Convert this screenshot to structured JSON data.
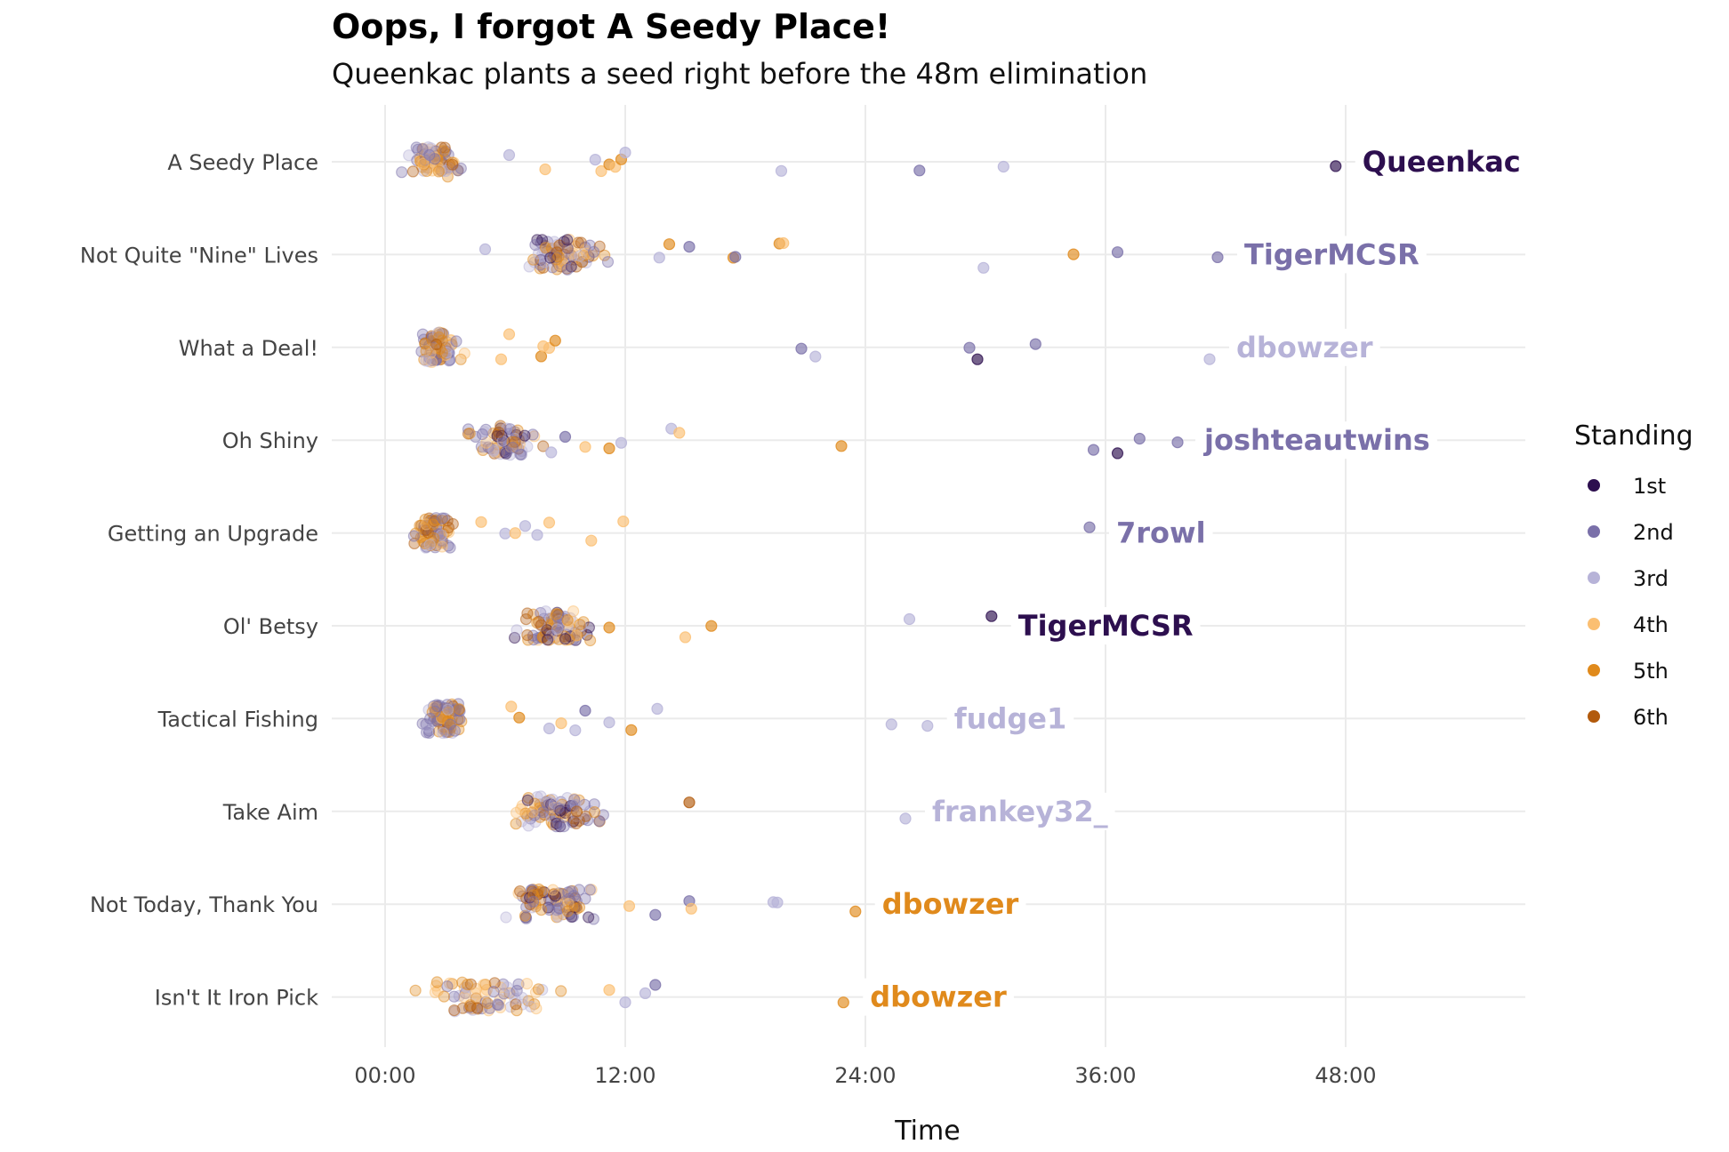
{
  "chart_data": {
    "type": "scatter",
    "title": "Oops, I forgot A Seedy Place!",
    "subtitle": "Queenkac plants a seed right before the 48m elimination",
    "xlabel": "Time",
    "ylabel": "",
    "x_unit": "minutes",
    "xlim": [
      -2.5,
      57
    ],
    "x_ticks": [
      0,
      12,
      24,
      36,
      48
    ],
    "x_tick_labels": [
      "00:00",
      "12:00",
      "24:00",
      "36:00",
      "48:00"
    ],
    "grid": true,
    "categories": [
      "A Seedy Place",
      "Not Quite \"Nine\" Lives",
      "What a Deal!",
      "Oh Shiny",
      "Getting an Upgrade",
      "Ol' Betsy",
      "Tactical Fishing",
      "Take Aim",
      "Not Today, Thank You",
      "Isn't It Iron Pick"
    ],
    "legend": {
      "title": "Standing",
      "position": "right",
      "entries": [
        {
          "label": "1st",
          "color": "#2d0f4f"
        },
        {
          "label": "2nd",
          "color": "#7a70a9"
        },
        {
          "label": "3rd",
          "color": "#b7b3d8"
        },
        {
          "label": "4th",
          "color": "#fbbf72"
        },
        {
          "label": "5th",
          "color": "#e08a1c"
        },
        {
          "label": "6th",
          "color": "#b25a0c"
        }
      ]
    },
    "annotations": [
      {
        "category": "A Seedy Place",
        "label": "Queenkac",
        "standing": "1st",
        "x": 47.5
      },
      {
        "category": "Not Quite \"Nine\" Lives",
        "label": "TigerMCSR",
        "standing": "2nd",
        "x": 41.6
      },
      {
        "category": "What a Deal!",
        "label": "dbowzer",
        "standing": "3rd",
        "x": 41.2
      },
      {
        "category": "Oh Shiny",
        "label": "joshteautwins",
        "standing": "2nd",
        "x": 39.6
      },
      {
        "category": "Getting an Upgrade",
        "label": "7rowl",
        "standing": "2nd",
        "x": 35.2
      },
      {
        "category": "Ol' Betsy",
        "label": "TigerMCSR",
        "standing": "1st",
        "x": 30.3
      },
      {
        "category": "Tactical Fishing",
        "label": "fudge1",
        "standing": "3rd",
        "x": 27.1
      },
      {
        "category": "Take Aim",
        "label": "frankey32_",
        "standing": "3rd",
        "x": 26.0
      },
      {
        "category": "Not Today, Thank You",
        "label": "dbowzer",
        "standing": "5th",
        "x": 23.5
      },
      {
        "category": "Isn't It Iron Pick",
        "label": "dbowzer",
        "standing": "5th",
        "x": 22.9
      }
    ],
    "outliers": [
      {
        "category": "A Seedy Place",
        "points": [
          [
            6.2,
            "3rd"
          ],
          [
            8.0,
            "4th"
          ],
          [
            10.5,
            "3rd"
          ],
          [
            10.8,
            "4th"
          ],
          [
            11.2,
            "5th"
          ],
          [
            11.5,
            "4th"
          ],
          [
            11.8,
            "5th"
          ],
          [
            12.0,
            "3rd"
          ],
          [
            19.8,
            "3rd"
          ],
          [
            26.7,
            "2nd"
          ],
          [
            30.9,
            "3rd"
          ],
          [
            47.5,
            "1st"
          ]
        ]
      },
      {
        "category": "Not Quite \"Nine\" Lives",
        "points": [
          [
            5.0,
            "3rd"
          ],
          [
            13.7,
            "3rd"
          ],
          [
            14.2,
            "5th"
          ],
          [
            15.2,
            "2nd"
          ],
          [
            17.4,
            "5th"
          ],
          [
            17.5,
            "2nd"
          ],
          [
            19.7,
            "5th"
          ],
          [
            19.9,
            "4th"
          ],
          [
            29.9,
            "3rd"
          ],
          [
            34.4,
            "5th"
          ],
          [
            36.6,
            "2nd"
          ],
          [
            41.6,
            "2nd"
          ]
        ]
      },
      {
        "category": "What a Deal!",
        "points": [
          [
            5.8,
            "4th"
          ],
          [
            6.2,
            "4th"
          ],
          [
            7.8,
            "5th"
          ],
          [
            7.9,
            "4th"
          ],
          [
            8.2,
            "4th"
          ],
          [
            8.5,
            "5th"
          ],
          [
            20.8,
            "2nd"
          ],
          [
            21.5,
            "3rd"
          ],
          [
            29.2,
            "2nd"
          ],
          [
            29.6,
            "1st"
          ],
          [
            32.5,
            "2nd"
          ],
          [
            41.2,
            "3rd"
          ]
        ]
      },
      {
        "category": "Oh Shiny",
        "points": [
          [
            8.3,
            "3rd"
          ],
          [
            9.0,
            "2nd"
          ],
          [
            10.0,
            "4th"
          ],
          [
            11.2,
            "5th"
          ],
          [
            11.8,
            "3rd"
          ],
          [
            14.3,
            "3rd"
          ],
          [
            14.7,
            "4th"
          ],
          [
            22.8,
            "5th"
          ],
          [
            35.4,
            "2nd"
          ],
          [
            36.6,
            "1st"
          ],
          [
            37.7,
            "2nd"
          ],
          [
            39.6,
            "2nd"
          ]
        ]
      },
      {
        "category": "Getting an Upgrade",
        "points": [
          [
            4.8,
            "4th"
          ],
          [
            6.0,
            "3rd"
          ],
          [
            6.5,
            "4th"
          ],
          [
            7.0,
            "3rd"
          ],
          [
            7.6,
            "3rd"
          ],
          [
            8.2,
            "4th"
          ],
          [
            10.3,
            "4th"
          ],
          [
            11.9,
            "4th"
          ],
          [
            35.2,
            "2nd"
          ]
        ]
      },
      {
        "category": "Ol' Betsy",
        "points": [
          [
            11.2,
            "5th"
          ],
          [
            15.0,
            "4th"
          ],
          [
            16.3,
            "5th"
          ],
          [
            26.2,
            "3rd"
          ],
          [
            30.3,
            "1st"
          ]
        ]
      },
      {
        "category": "Tactical Fishing",
        "points": [
          [
            6.3,
            "4th"
          ],
          [
            6.7,
            "5th"
          ],
          [
            8.2,
            "3rd"
          ],
          [
            8.8,
            "4th"
          ],
          [
            9.5,
            "3rd"
          ],
          [
            10.0,
            "2nd"
          ],
          [
            11.2,
            "3rd"
          ],
          [
            12.3,
            "5th"
          ],
          [
            13.6,
            "3rd"
          ],
          [
            25.3,
            "3rd"
          ],
          [
            27.1,
            "3rd"
          ]
        ]
      },
      {
        "category": "Take Aim",
        "points": [
          [
            15.2,
            "6th"
          ],
          [
            26.0,
            "3rd"
          ]
        ]
      },
      {
        "category": "Not Today, Thank You",
        "points": [
          [
            12.2,
            "4th"
          ],
          [
            13.5,
            "2nd"
          ],
          [
            15.2,
            "2nd"
          ],
          [
            15.3,
            "4th"
          ],
          [
            19.4,
            "3rd"
          ],
          [
            19.6,
            "3rd"
          ],
          [
            23.5,
            "5th"
          ]
        ]
      },
      {
        "category": "Isn't It Iron Pick",
        "points": [
          [
            11.2,
            "4th"
          ],
          [
            12.0,
            "3rd"
          ],
          [
            13.0,
            "3rd"
          ],
          [
            13.5,
            "2nd"
          ],
          [
            22.9,
            "5th"
          ]
        ]
      }
    ],
    "clusters": [
      {
        "category": "A Seedy Place",
        "min": 0.0,
        "max": 4.8,
        "count": 75,
        "mix": [
          "2nd",
          "3rd",
          "4th",
          "5th",
          "6th",
          "2nd",
          "4th"
        ]
      },
      {
        "category": "Not Quite \"Nine\" Lives",
        "min": 5.8,
        "max": 12.0,
        "count": 80,
        "mix": [
          "1st",
          "2nd",
          "3rd",
          "4th",
          "5th",
          "6th",
          "2nd",
          "5th"
        ]
      },
      {
        "category": "What a Deal!",
        "min": 1.0,
        "max": 4.5,
        "count": 70,
        "mix": [
          "2nd",
          "3rd",
          "4th",
          "5th",
          "6th",
          "2nd",
          "5th"
        ]
      },
      {
        "category": "Oh Shiny",
        "min": 3.5,
        "max": 8.5,
        "count": 75,
        "mix": [
          "1st",
          "2nd",
          "3rd",
          "4th",
          "5th",
          "6th",
          "2nd",
          "5th"
        ]
      },
      {
        "category": "Getting an Upgrade",
        "min": 0.8,
        "max": 4.0,
        "count": 70,
        "mix": [
          "2nd",
          "3rd",
          "4th",
          "5th",
          "6th",
          "2nd",
          "5th"
        ]
      },
      {
        "category": "Ol' Betsy",
        "min": 5.3,
        "max": 11.5,
        "count": 80,
        "mix": [
          "1st",
          "2nd",
          "3rd",
          "4th",
          "5th",
          "6th",
          "2nd",
          "5th"
        ]
      },
      {
        "category": "Tactical Fishing",
        "min": 1.0,
        "max": 4.8,
        "count": 70,
        "mix": [
          "2nd",
          "3rd",
          "4th",
          "5th",
          "6th",
          "2nd",
          "5th"
        ]
      },
      {
        "category": "Take Aim",
        "min": 5.2,
        "max": 12.0,
        "count": 85,
        "mix": [
          "1st",
          "2nd",
          "3rd",
          "4th",
          "5th",
          "6th",
          "2nd",
          "5th"
        ]
      },
      {
        "category": "Not Today, Thank You",
        "min": 5.2,
        "max": 11.5,
        "count": 80,
        "mix": [
          "1st",
          "2nd",
          "3rd",
          "4th",
          "5th",
          "6th",
          "2nd",
          "5th"
        ]
      },
      {
        "category": "Isn't It Iron Pick",
        "min": 0.0,
        "max": 10.5,
        "count": 70,
        "mix": [
          "2nd",
          "3rd",
          "4th",
          "5th",
          "6th",
          "2nd",
          "4th"
        ]
      }
    ]
  }
}
